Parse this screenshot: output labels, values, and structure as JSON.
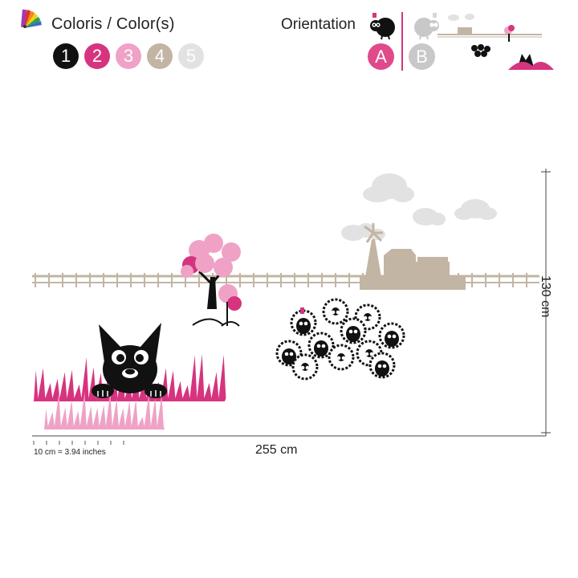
{
  "header": {
    "colors_title": "Coloris / Color(s)",
    "swatches": [
      {
        "label": "1",
        "color": "#111111"
      },
      {
        "label": "2",
        "color": "#d6347f"
      },
      {
        "label": "3",
        "color": "#efa2c6"
      },
      {
        "label": "4",
        "color": "#c2b5a3"
      },
      {
        "label": "5",
        "color": "#e2e2e2"
      }
    ],
    "orientation_title": "Orientation",
    "orientation_options": [
      {
        "label": "A",
        "color": "#e04a8b"
      },
      {
        "label": "B",
        "color": "#c8c8c8"
      }
    ]
  },
  "dimensions": {
    "width": "255 cm",
    "height": "130 cm",
    "scale": "10 cm = 3.94 inches"
  },
  "colors": {
    "black": "#111111",
    "magenta": "#d6347f",
    "pink": "#efa2c6",
    "taupe": "#c2b5a3",
    "cloud": "#e2e2e2"
  }
}
